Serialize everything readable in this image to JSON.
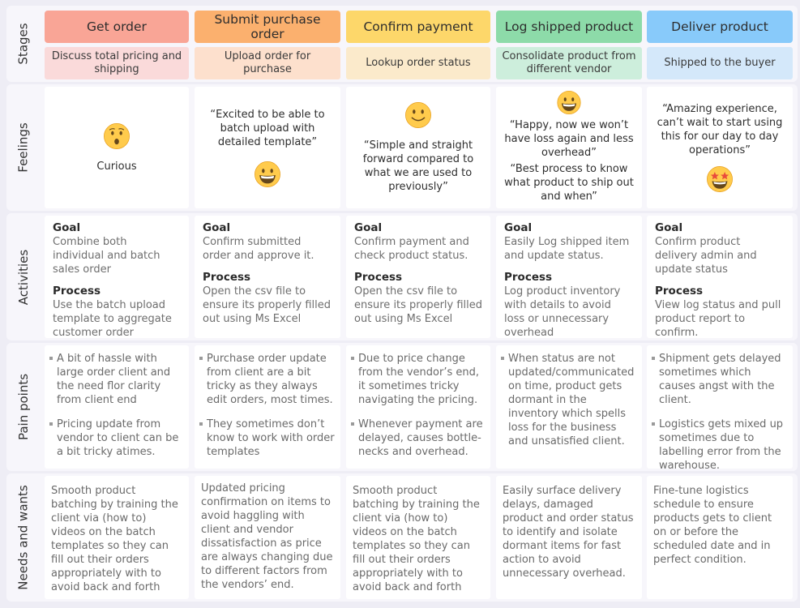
{
  "row_labels": {
    "stages": "Stages",
    "feelings": "Feelings",
    "activities": "Activities",
    "pain_points": "Pain points",
    "needs": "Needs and wants"
  },
  "columns": [
    {
      "stage": "Get order",
      "stage_color": "#f9a596",
      "sub": "Discuss total pricing and shipping",
      "sub_color": "#fadada",
      "emoji": "hushed",
      "feeling_quotes": [
        "Curious"
      ],
      "activities": {
        "goal_label": "Goal",
        "goal": "Combine both individual and batch sales order",
        "process_label": "Process",
        "process": "Use the batch upload template to aggregate customer order"
      },
      "pain_points": [
        "A bit of hassle with large order client and the need flor clarity from client end",
        "Pricing update from vendor to client can be a bit tricky atimes."
      ],
      "needs": "Smooth product batching by training the client via (how to) videos on the batch templates so they can fill out their orders appropriately with to avoid back and forth"
    },
    {
      "stage": "Submit purchase order",
      "stage_color": "#fbb06e",
      "sub": "Upload order for purchase",
      "sub_color": "#fde0cd",
      "emoji": "grin",
      "feeling_quotes": [
        "“Excited to be able to batch upload with detailed template”"
      ],
      "activities": {
        "goal_label": "Goal",
        "goal": "Confirm submitted order and approve it.",
        "process_label": "Process",
        "process": "Open the csv file to ensure its properly filled out using Ms Excel"
      },
      "pain_points": [
        "Purchase order update from client are a bit tricky as they always edit orders, most times.",
        "They sometimes don’t know to work with order templates"
      ],
      "needs": "Updated pricing confirmation on items to avoid haggling with client and vendor dissatisfaction as price are always changing due to different factors from the vendors’ end."
    },
    {
      "stage": "Confirm payment",
      "stage_color": "#fdd76a",
      "sub": "Lookup order status",
      "sub_color": "#fbeacb",
      "emoji": "smile",
      "feeling_quotes": [
        "“Simple and straight forward compared to what we are used to previously”"
      ],
      "activities": {
        "goal_label": "Goal",
        "goal": "Confirm payment and check product status.",
        "process_label": "Process",
        "process": "Open the csv file to ensure its properly filled out using Ms Excel"
      },
      "pain_points": [
        "Due to price change from the vendor’s end, it sometimes tricky navigating the pricing.",
        "Whenever payment are delayed, causes bottle-necks and overhead."
      ],
      "needs": "Smooth product batching by training the client via (how to) videos on the batch templates so they can fill out their orders appropriately with to avoid back and forth"
    },
    {
      "stage": "Log shipped product",
      "stage_color": "#8ddba9",
      "sub": "Consolidate product from different vendor",
      "sub_color": "#cdeedc",
      "emoji": "grin",
      "feeling_quotes": [
        "“Happy, now we won’t have loss again and less overhead”",
        "“Best process to know what product to ship out and when”"
      ],
      "activities": {
        "goal_label": "Goal",
        "goal": "Easily Log shipped item and update status.",
        "process_label": "Process",
        "process": "Log product inventory with details to avoid loss or unnecessary overhead"
      },
      "pain_points": [
        "When status are not updated/communicated on time, product gets dormant in the inventory which spells loss for the business and unsatisfied client."
      ],
      "needs": "Easily surface delivery delays, damaged product and order status to identify and isolate dormant items for fast action to avoid unnecessary overhead."
    },
    {
      "stage": "Deliver product",
      "stage_color": "#88cafa",
      "sub": "Shipped to the buyer",
      "sub_color": "#d4e8fa",
      "emoji": "star-struck",
      "feeling_quotes": [
        "“Amazing experience, can’t wait to start using this for our day to day operations”"
      ],
      "activities": {
        "goal_label": "Goal",
        "goal": "Confirm product delivery admin and update status",
        "process_label": "Process",
        "process": "View log status and pull product report to confirm."
      },
      "pain_points": [
        "Shipment gets delayed sometimes which causes angst with the client.",
        "Logistics gets mixed up sometimes due to labelling error from the warehouse."
      ],
      "needs": "Fine-tune logistics schedule to ensure products gets to client on or before the scheduled date and in perfect condition."
    }
  ]
}
